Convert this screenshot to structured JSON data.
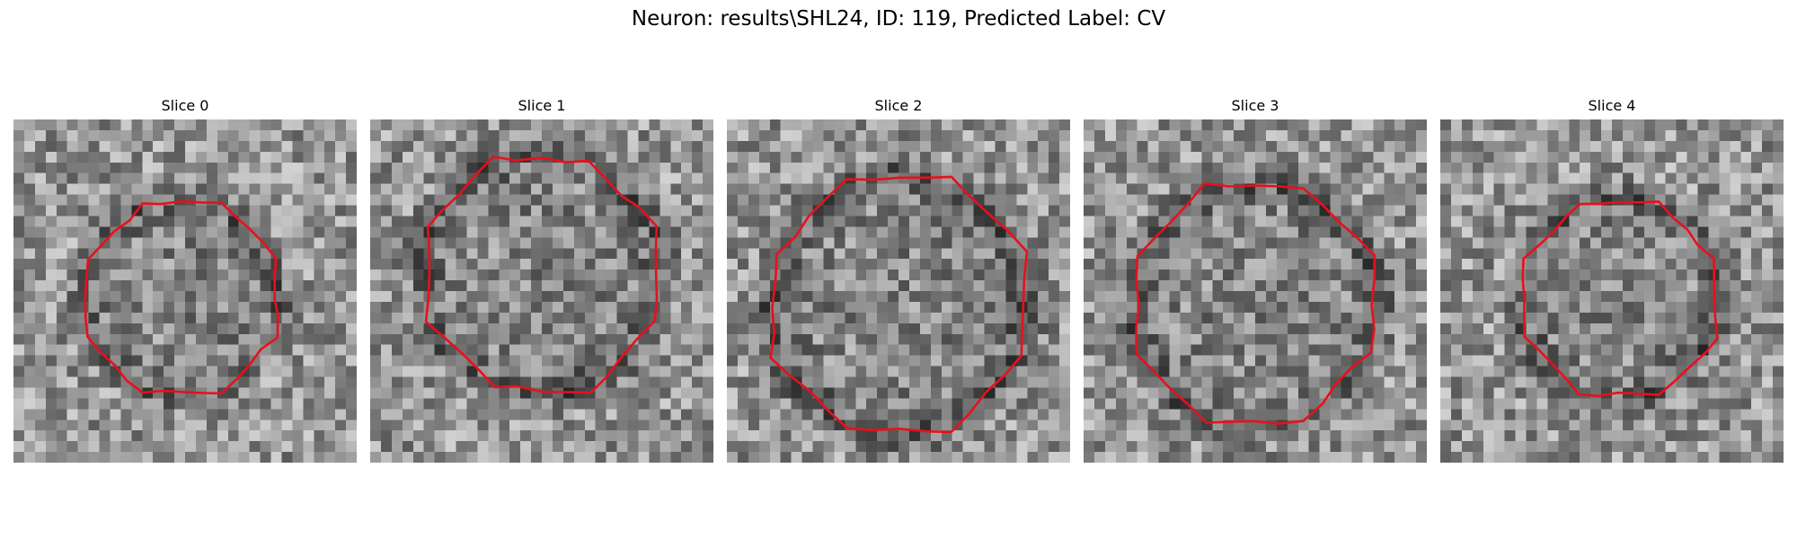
{
  "figure": {
    "title": "Neuron: results\\SHL24, ID: 119, Predicted Label: CV",
    "colormap": "gray",
    "contour_color": "#e8101c"
  },
  "panels": [
    {
      "title": "Slice 0"
    },
    {
      "title": "Slice 1"
    },
    {
      "title": "Slice 2"
    },
    {
      "title": "Slice 3"
    },
    {
      "title": "Slice 4"
    }
  ]
}
